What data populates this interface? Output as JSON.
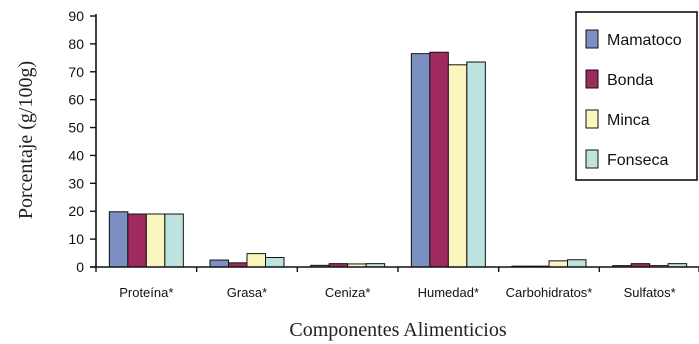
{
  "chart_data": {
    "type": "bar",
    "title": "",
    "xlabel": "Componentes Alimenticios",
    "ylabel": "Porcentaje (g/100g)",
    "ylim": [
      0,
      90
    ],
    "yticks": [
      0,
      10,
      20,
      30,
      40,
      50,
      60,
      70,
      80,
      90
    ],
    "grid": false,
    "legend_position": "top-right",
    "categories": [
      "Proteína*",
      "Grasa*",
      "Ceniza*",
      "Humedad*",
      "Carbohidratos*",
      "Sulfatos*"
    ],
    "series": [
      {
        "name": "Mamatoco",
        "color": "#7b8fc0",
        "values": [
          19.8,
          2.5,
          0.6,
          76.5,
          0.3,
          0.5
        ]
      },
      {
        "name": "Bonda",
        "color": "#9e2a5e",
        "values": [
          19.0,
          1.5,
          1.2,
          77.0,
          0.3,
          1.2
        ]
      },
      {
        "name": "Minca",
        "color": "#fbf6c0",
        "values": [
          19.0,
          4.8,
          1.1,
          72.5,
          2.2,
          0.5
        ]
      },
      {
        "name": "Fonseca",
        "color": "#bde3df",
        "values": [
          19.0,
          3.4,
          1.2,
          73.5,
          2.6,
          1.2
        ]
      }
    ]
  }
}
